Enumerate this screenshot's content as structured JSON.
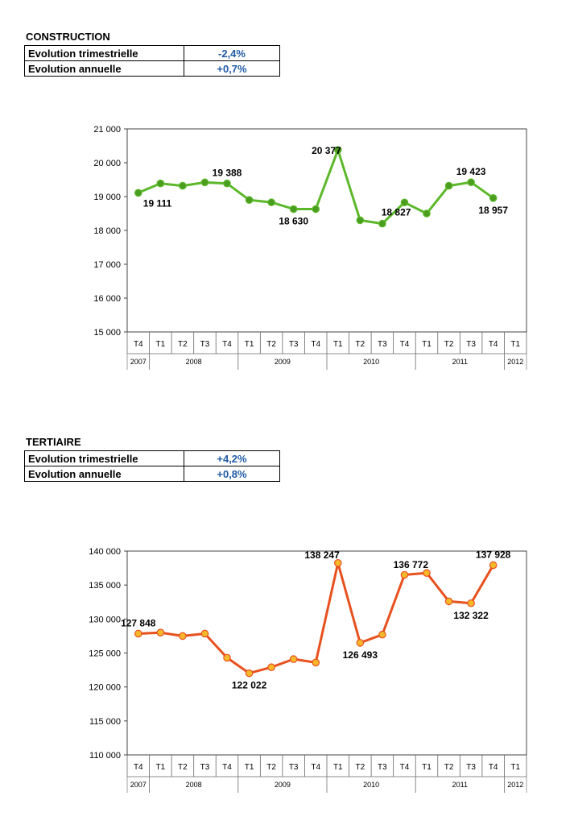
{
  "construction": {
    "title": "CONSTRUCTION",
    "rows": [
      {
        "label": "Evolution trimestrielle",
        "value": "-2,4%"
      },
      {
        "label": "Evolution annuelle",
        "value": "+0,7%"
      }
    ]
  },
  "tertiaire": {
    "title": "TERTIAIRE",
    "rows": [
      {
        "label": "Evolution trimestrielle",
        "value": "+4,2%"
      },
      {
        "label": "Evolution annuelle",
        "value": "+0,8%"
      }
    ]
  },
  "chart_data": [
    {
      "type": "line",
      "color": "#5cb82a",
      "point_fill": "#4a9d1e",
      "categories": [
        "T4",
        "T1",
        "T2",
        "T3",
        "T4",
        "T1",
        "T2",
        "T3",
        "T4",
        "T1",
        "T2",
        "T3",
        "T4",
        "T1",
        "T2",
        "T3",
        "T4",
        "T1"
      ],
      "years": [
        {
          "label": "2007",
          "span": [
            0,
            0
          ]
        },
        {
          "label": "2008",
          "span": [
            1,
            4
          ]
        },
        {
          "label": "2009",
          "span": [
            5,
            8
          ]
        },
        {
          "label": "2010",
          "span": [
            9,
            12
          ]
        },
        {
          "label": "2011",
          "span": [
            13,
            16
          ]
        },
        {
          "label": "2012",
          "span": [
            17,
            17
          ]
        }
      ],
      "values": [
        19111,
        19388,
        19320,
        19420,
        19388,
        18900,
        18830,
        18630,
        18630,
        20377,
        18300,
        18200,
        18827,
        18500,
        19320,
        19423,
        18957,
        null
      ],
      "ylim": [
        15000,
        21000
      ],
      "yticks": [
        {
          "value": 15000,
          "label": "15 000"
        },
        {
          "value": 16000,
          "label": "16 000"
        },
        {
          "value": 17000,
          "label": "17 000"
        },
        {
          "value": 18000,
          "label": "18 000"
        },
        {
          "value": 19000,
          "label": "19 000"
        },
        {
          "value": 20000,
          "label": "20 000"
        },
        {
          "value": 21000,
          "label": "21 000"
        }
      ],
      "data_labels": [
        {
          "index": 0,
          "text": "19 111",
          "anchor": "below-right"
        },
        {
          "index": 4,
          "text": "19 388",
          "anchor": "above"
        },
        {
          "index": 7,
          "text": "18 630",
          "anchor": "below"
        },
        {
          "index": 9,
          "text": "20 377",
          "anchor": "left"
        },
        {
          "index": 12,
          "text": "18 827",
          "anchor": "below-left"
        },
        {
          "index": 15,
          "text": "19 423",
          "anchor": "above"
        },
        {
          "index": 16,
          "text": "18 957",
          "anchor": "below"
        }
      ]
    },
    {
      "type": "line",
      "color": "#e8501e",
      "point_fill": "#f5b82a",
      "categories": [
        "T4",
        "T1",
        "T2",
        "T3",
        "T4",
        "T1",
        "T2",
        "T3",
        "T4",
        "T1",
        "T2",
        "T3",
        "T4",
        "T1",
        "T2",
        "T3",
        "T4",
        "T1"
      ],
      "years": [
        {
          "label": "2007",
          "span": [
            0,
            0
          ]
        },
        {
          "label": "2008",
          "span": [
            1,
            4
          ]
        },
        {
          "label": "2009",
          "span": [
            5,
            8
          ]
        },
        {
          "label": "2010",
          "span": [
            9,
            12
          ]
        },
        {
          "label": "2011",
          "span": [
            13,
            16
          ]
        },
        {
          "label": "2012",
          "span": [
            17,
            17
          ]
        }
      ],
      "values": [
        127848,
        128000,
        127500,
        127848,
        124300,
        122022,
        122900,
        124100,
        123600,
        138247,
        126493,
        127700,
        136500,
        136772,
        132600,
        132322,
        137928,
        null
      ],
      "ylim": [
        110000,
        140000
      ],
      "yticks": [
        {
          "value": 110000,
          "label": "110 000"
        },
        {
          "value": 115000,
          "label": "115 000"
        },
        {
          "value": 120000,
          "label": "120 000"
        },
        {
          "value": 125000,
          "label": "125 000"
        },
        {
          "value": 130000,
          "label": "130 000"
        },
        {
          "value": 135000,
          "label": "135 000"
        },
        {
          "value": 140000,
          "label": "140 000"
        }
      ],
      "data_labels": [
        {
          "index": 0,
          "text": "127 848",
          "anchor": "above"
        },
        {
          "index": 5,
          "text": "122 022",
          "anchor": "below"
        },
        {
          "index": 9,
          "text": "138 247",
          "anchor": "left-above"
        },
        {
          "index": 10,
          "text": "126 493",
          "anchor": "below"
        },
        {
          "index": 13,
          "text": "136 772",
          "anchor": "left-above"
        },
        {
          "index": 15,
          "text": "132 322",
          "anchor": "below"
        },
        {
          "index": 16,
          "text": "137 928",
          "anchor": "above"
        }
      ]
    }
  ]
}
